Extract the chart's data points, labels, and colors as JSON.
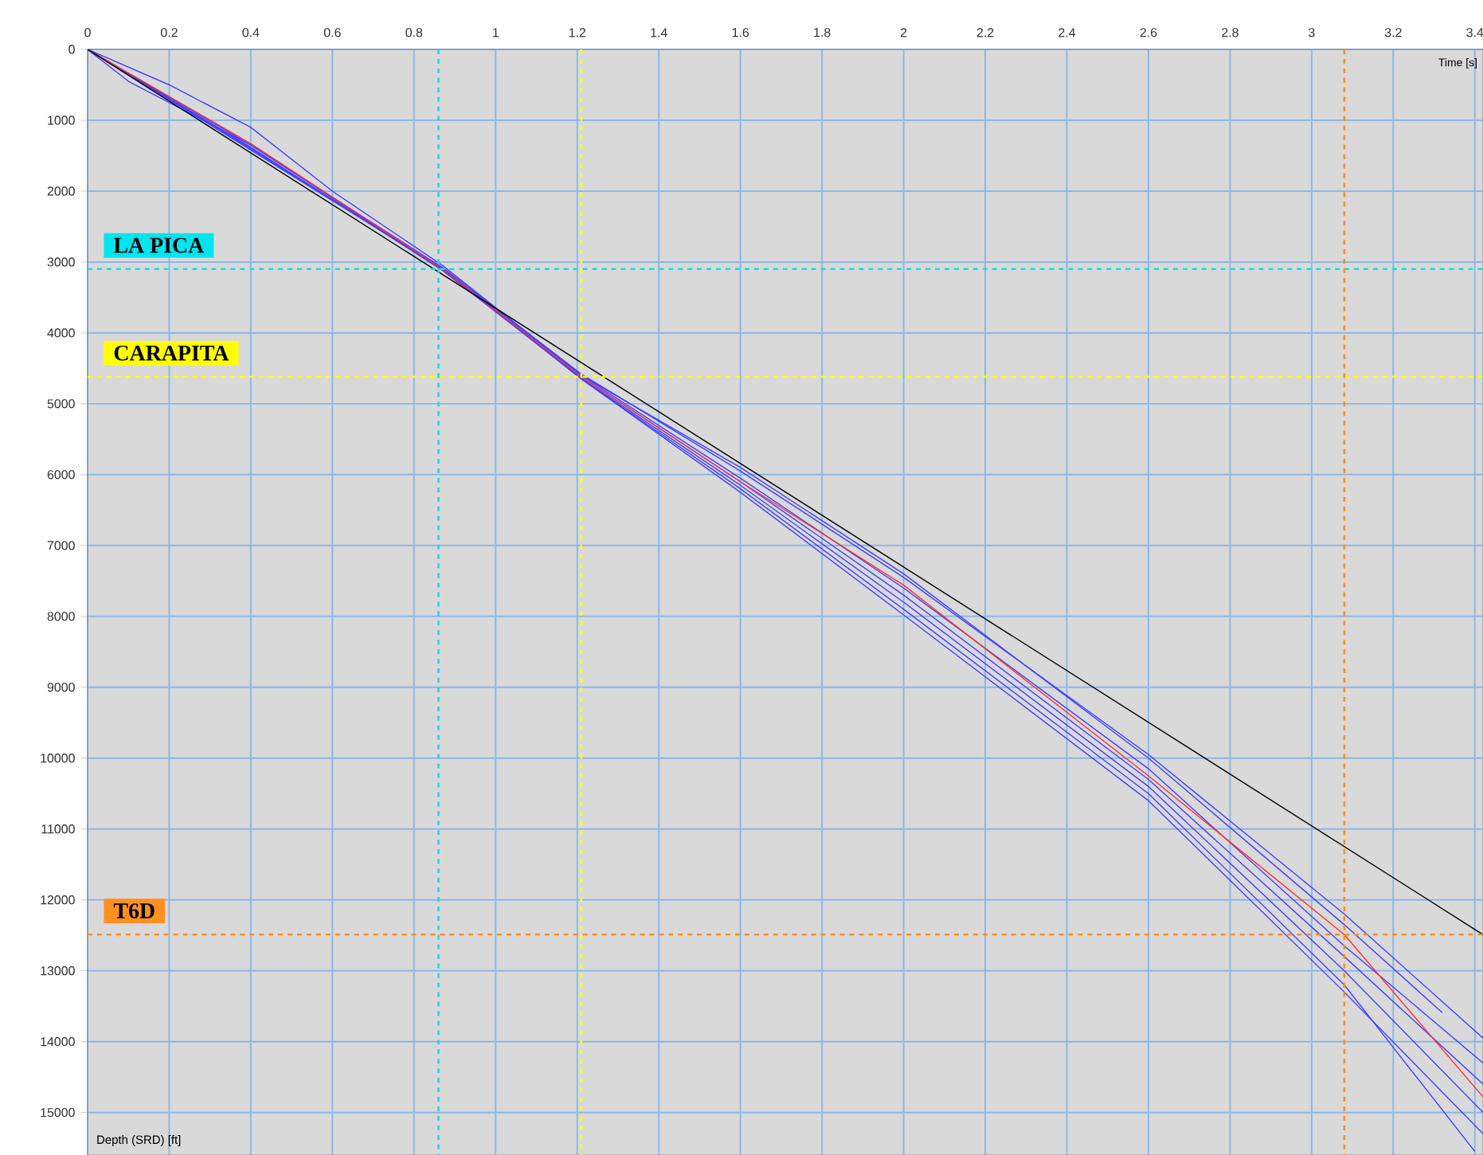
{
  "chart_data": {
    "type": "line",
    "xlabel": "Time [s]",
    "ylabel": "Depth (SRD) [ft]",
    "xlim": [
      0,
      3.42
    ],
    "ylim": [
      15600,
      0
    ],
    "xticks": [
      0,
      0.2,
      0.4,
      0.6,
      0.8,
      1,
      1.2,
      1.4,
      1.6,
      1.8,
      2,
      2.2,
      2.4,
      2.6,
      2.8,
      3,
      3.2,
      3.4
    ],
    "yticks": [
      0,
      1000,
      2000,
      3000,
      4000,
      5000,
      6000,
      7000,
      8000,
      9000,
      10000,
      11000,
      12000,
      13000,
      14000,
      15000
    ],
    "grid": true,
    "marker": "none",
    "line_style": "solid",
    "series": [
      {
        "color": "#4040ff",
        "x": [
          0,
          0.1,
          0.4,
          0.87,
          1.21,
          1.6,
          2.0,
          2.6,
          3.08,
          3.42
        ],
        "values": [
          0,
          450,
          1350,
          3100,
          4650,
          6250,
          7980,
          10600,
          13300,
          15300
        ]
      },
      {
        "color": "#4040ff",
        "x": [
          0,
          0.4,
          0.87,
          1.21,
          1.6,
          2.0,
          2.6,
          3.08,
          3.4
        ],
        "values": [
          0,
          1400,
          3100,
          4650,
          6200,
          7900,
          10500,
          13200,
          15550
        ]
      },
      {
        "color": "#4040ff",
        "x": [
          0,
          0.4,
          0.87,
          1.21,
          1.6,
          2.0,
          2.6,
          3.08,
          3.42
        ],
        "values": [
          0,
          1380,
          3120,
          4640,
          6150,
          7800,
          10400,
          13000,
          15000
        ]
      },
      {
        "color": "#4040ff",
        "x": [
          0,
          0.4,
          0.87,
          1.21,
          1.6,
          2.0,
          2.6,
          3.08,
          3.42
        ],
        "values": [
          0,
          1420,
          3100,
          4620,
          6100,
          7700,
          10300,
          12800,
          14600
        ]
      },
      {
        "color": "#4040ff",
        "x": [
          0,
          0.4,
          0.87,
          1.21,
          1.6,
          2.0,
          2.6,
          3.08,
          3.42
        ],
        "values": [
          0,
          1400,
          3080,
          4600,
          6050,
          7600,
          10150,
          12650,
          14300
        ]
      },
      {
        "color": "#4040ff",
        "x": [
          0,
          0.2,
          0.4,
          0.6,
          0.87,
          1.21,
          1.6,
          2.0,
          2.6,
          3.08,
          3.32
        ],
        "values": [
          0,
          500,
          1100,
          2000,
          3050,
          4600,
          5900,
          7400,
          10000,
          12350,
          13590
        ]
      },
      {
        "color": "#4040ff",
        "x": [
          0,
          0.4,
          0.87,
          1.21,
          1.6,
          2.0,
          2.6,
          3.08,
          3.42
        ],
        "values": [
          0,
          1350,
          3080,
          4580,
          5950,
          7450,
          9950,
          12200,
          13950
        ]
      },
      {
        "color": "#ff3030",
        "x": [
          0,
          0.4,
          0.87,
          1.21,
          1.6,
          2.0,
          2.6,
          3.08,
          3.42
        ],
        "values": [
          0,
          1330,
          3100,
          4620,
          6100,
          7560,
          10250,
          12490,
          14780
        ]
      },
      {
        "color": "#000000",
        "x": [
          0,
          3.42
        ],
        "values": [
          0,
          12490
        ]
      }
    ],
    "ref_lines": [
      {
        "axis": "x",
        "value": 0.86,
        "color": "#00e5ee",
        "line_style": "dashed"
      },
      {
        "axis": "y",
        "value": 3100,
        "label": "LA PICA",
        "color": "#00e5ee",
        "line_style": "dashed"
      },
      {
        "axis": "x",
        "value": 1.21,
        "color": "#ffff00",
        "line_style": "dashed"
      },
      {
        "axis": "y",
        "value": 4620,
        "label": "CARAPITA",
        "color": "#ffff00",
        "line_style": "dashed"
      },
      {
        "axis": "x",
        "value": 3.08,
        "color": "#ff9020",
        "line_style": "dashed"
      },
      {
        "axis": "y",
        "value": 12490,
        "label": "T6D",
        "color": "#ff9020",
        "line_style": "dashed"
      }
    ]
  }
}
